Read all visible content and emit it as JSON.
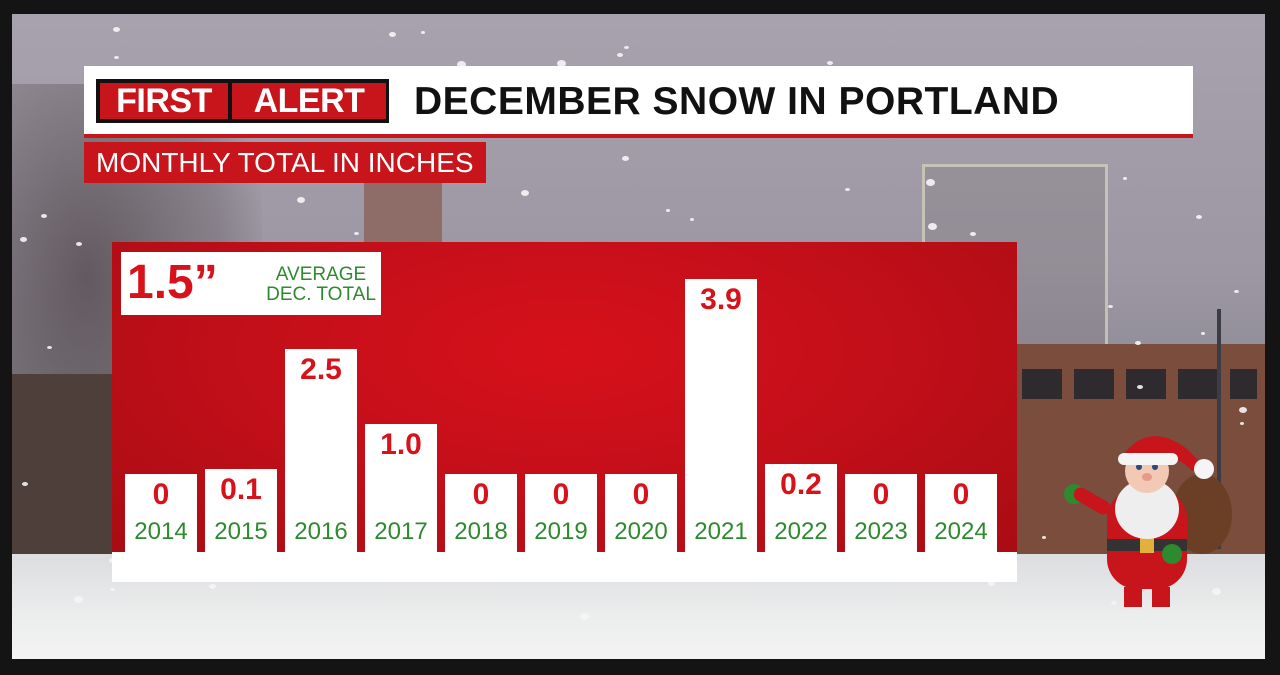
{
  "header": {
    "badge_first": "FIRST",
    "badge_alert": "ALERT",
    "title": "DECEMBER SNOW IN PORTLAND",
    "subtitle": "MONTHLY TOTAL IN INCHES"
  },
  "average": {
    "value": "1.5”",
    "label_line1": "AVERAGE",
    "label_line2": "DEC. TOTAL"
  },
  "colors": {
    "accent_red": "#c8141b",
    "value_red": "#d8121b",
    "year_green": "#2e8a2e"
  },
  "chart_data": {
    "type": "bar",
    "title": "DECEMBER SNOW IN PORTLAND",
    "subtitle": "MONTHLY TOTAL IN INCHES",
    "categories": [
      "2014",
      "2015",
      "2016",
      "2017",
      "2018",
      "2019",
      "2020",
      "2021",
      "2022",
      "2023",
      "2024"
    ],
    "values": [
      0,
      0.1,
      2.5,
      1.0,
      0,
      0,
      0,
      3.9,
      0.2,
      0,
      0
    ],
    "labels": [
      "0",
      "0.1",
      "2.5",
      "1.0",
      "0",
      "0",
      "0",
      "3.9",
      "0.2",
      "0",
      "0"
    ],
    "reference": {
      "label": "AVERAGE DEC. TOTAL",
      "value": 1.5
    },
    "xlabel": "",
    "ylabel": "",
    "ylim": [
      0,
      3.9
    ],
    "grid": false,
    "legend": "none"
  }
}
